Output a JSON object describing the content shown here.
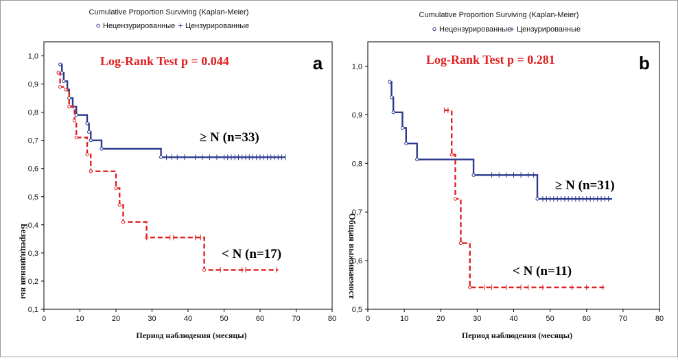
{
  "chart_data": [
    {
      "panel": "a",
      "type": "line",
      "title": "Cumulative Proportion Surviving (Kaplan-Meier)",
      "legend": {
        "uncensored": "Нецензурированные",
        "censored": "Цензурированные"
      },
      "test_label": "Log-Rank Test p = 0.044",
      "panel_label": "a",
      "xlabel": "Период наблюдения (месяцы)",
      "ylabel": "Безрецидивная вы",
      "xlim": [
        0,
        80
      ],
      "ylim": [
        0.1,
        1.05
      ],
      "xticks": [
        0,
        10,
        20,
        30,
        40,
        50,
        60,
        70,
        80
      ],
      "xtick_labels": [
        "0",
        "10",
        "20",
        "30",
        "40",
        "50",
        "60",
        "70",
        "80"
      ],
      "yticks": [
        0.1,
        0.2,
        0.3,
        0.4,
        0.5,
        0.6,
        0.7,
        0.8,
        0.9,
        1.0
      ],
      "ytick_labels": [
        "0,1",
        "0,2",
        "0,3",
        "0,4",
        "0,5",
        "0,6",
        "0,7",
        "0,8",
        "0,9",
        "1,0"
      ],
      "series": [
        {
          "name": "≥ N (n=33)",
          "color": "#2b3a8f",
          "dash": false,
          "steps": [
            [
              4.5,
              0.97
            ],
            [
              5,
              0.94
            ],
            [
              5.5,
              0.91
            ],
            [
              6.5,
              0.88
            ],
            [
              7,
              0.85
            ],
            [
              8,
              0.82
            ],
            [
              9,
              0.79
            ],
            [
              12,
              0.76
            ],
            [
              12.5,
              0.73
            ],
            [
              13,
              0.7
            ],
            [
              16,
              0.67
            ],
            [
              32.5,
              0.64
            ],
            [
              67,
              0.64
            ]
          ],
          "events": [
            [
              4.5,
              0.97
            ],
            [
              5,
              0.94
            ],
            [
              5.5,
              0.91
            ],
            [
              6.5,
              0.88
            ],
            [
              7,
              0.85
            ],
            [
              8,
              0.82
            ],
            [
              9,
              0.79
            ],
            [
              12,
              0.76
            ],
            [
              12.5,
              0.73
            ],
            [
              13,
              0.7
            ],
            [
              16,
              0.67
            ],
            [
              32.5,
              0.64
            ]
          ],
          "censored": [
            34,
            35.5,
            37,
            39,
            42,
            44,
            46,
            48,
            50,
            51,
            52,
            53,
            54,
            55,
            56,
            57,
            58,
            59,
            60,
            61,
            62,
            63,
            64,
            65,
            66,
            67
          ]
        },
        {
          "name": "< N (n=17)",
          "color": "#e02020",
          "dash": true,
          "steps": [
            [
              4,
              0.94
            ],
            [
              4.5,
              0.89
            ],
            [
              6,
              0.88
            ],
            [
              7,
              0.82
            ],
            [
              8.5,
              0.77
            ],
            [
              9,
              0.71
            ],
            [
              12,
              0.65
            ],
            [
              13,
              0.59
            ],
            [
              20,
              0.53
            ],
            [
              21,
              0.47
            ],
            [
              22,
              0.41
            ],
            [
              28.5,
              0.355
            ],
            [
              44.5,
              0.24
            ],
            [
              65,
              0.24
            ]
          ],
          "events": [
            [
              4,
              0.94
            ],
            [
              4.5,
              0.89
            ],
            [
              6,
              0.88
            ],
            [
              7,
              0.82
            ],
            [
              8.5,
              0.77
            ],
            [
              9,
              0.71
            ],
            [
              12,
              0.65
            ],
            [
              13,
              0.59
            ],
            [
              20,
              0.53
            ],
            [
              21,
              0.47
            ],
            [
              22,
              0.41
            ],
            [
              28.5,
              0.355
            ],
            [
              44.5,
              0.24
            ]
          ],
          "censored": [
            28.5,
            35,
            36,
            42,
            43.5,
            49,
            55,
            56,
            64.5
          ]
        }
      ]
    },
    {
      "panel": "b",
      "type": "line",
      "title": "Cumulative Proportion Surviving (Kaplan-Meier)",
      "legend": {
        "uncensored": "Нецензурированные",
        "censored": "Цензурированные"
      },
      "test_label": "Log-Rank Test p = 0.281",
      "panel_label": "b",
      "xlabel": "Период наблюдения (месяцы)",
      "ylabel": "Общая выживаемост",
      "xlim": [
        0,
        80
      ],
      "ylim": [
        0.5,
        1.05
      ],
      "xticks": [
        0,
        10,
        20,
        30,
        40,
        50,
        60,
        70,
        80
      ],
      "xtick_labels": [
        "0",
        "10",
        "20",
        "30",
        "40",
        "50",
        "60",
        "70",
        "80"
      ],
      "yticks": [
        0.5,
        0.6,
        0.7,
        0.8,
        0.9,
        1.0
      ],
      "ytick_labels": [
        "0,5",
        "0,6",
        "0,7",
        "0,8",
        "0,9",
        "1,0"
      ],
      "series": [
        {
          "name": "≥ N (n=31)",
          "color": "#2b3a8f",
          "dash": false,
          "steps": [
            [
              6,
              0.968
            ],
            [
              6.5,
              0.936
            ],
            [
              7,
              0.905
            ],
            [
              9.5,
              0.873
            ],
            [
              10.5,
              0.841
            ],
            [
              13.5,
              0.808
            ],
            [
              29,
              0.776
            ],
            [
              46.5,
              0.727
            ],
            [
              67,
              0.727
            ]
          ],
          "events": [
            [
              6,
              0.968
            ],
            [
              6.5,
              0.936
            ],
            [
              7,
              0.905
            ],
            [
              9.5,
              0.873
            ],
            [
              10.5,
              0.841
            ],
            [
              13.5,
              0.808
            ],
            [
              29,
              0.776
            ],
            [
              46.5,
              0.727
            ]
          ],
          "censored": [
            34,
            36,
            38,
            40,
            42,
            44,
            45.5,
            48,
            49,
            50,
            51,
            52,
            53,
            54,
            55,
            56,
            57,
            58,
            59,
            60,
            61,
            62,
            63,
            64,
            65,
            66
          ]
        },
        {
          "name": "< N (n=11)",
          "color": "#e02020",
          "dash": true,
          "steps": [
            [
              21,
              0.909
            ],
            [
              23,
              0.818
            ],
            [
              24,
              0.727
            ],
            [
              25.5,
              0.636
            ],
            [
              28,
              0.545
            ],
            [
              65,
              0.545
            ]
          ],
          "events": [
            [
              23,
              0.818
            ],
            [
              24,
              0.727
            ],
            [
              25.5,
              0.636
            ],
            [
              28,
              0.545
            ]
          ],
          "censored": [
            21,
            22,
            32,
            34,
            38,
            42,
            44,
            48,
            56,
            60,
            64.5
          ]
        }
      ]
    }
  ]
}
